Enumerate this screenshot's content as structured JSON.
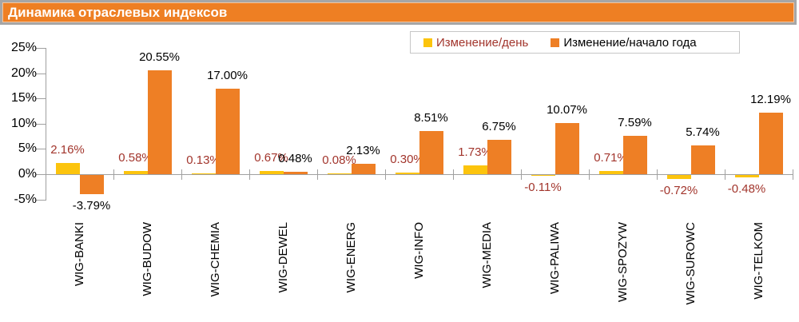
{
  "panel": {
    "title": "Динамика отраслевых индексов"
  },
  "colors": {
    "title_bar_bg": "#EE7F23",
    "title_text": "#FFFFFF",
    "axis": "#A0A0A0",
    "legend_border": "#C6C6C6",
    "day_bar": "#FCC40D",
    "ytd_bar": "#EE7F25",
    "day_label_text": "#A2352C",
    "ytd_label_text": "#000000"
  },
  "chart_data": {
    "type": "bar",
    "title": "Динамика отраслевых индексов",
    "categories": [
      "WIG-BANKI",
      "WIG-BUDOW",
      "WIG-CHEMIA",
      "WIG-DEWEL",
      "WIG-ENERG",
      "WIG-INFO",
      "WIG-MEDIA",
      "WIG-PALIWA",
      "WIG-SPOZYW",
      "WIG-SUROWC",
      "WIG-TELKOM"
    ],
    "series": [
      {
        "name": "Изменение/день",
        "color": "#FCC40D",
        "label_color": "#A2352C",
        "values": [
          2.16,
          0.58,
          0.13,
          0.67,
          0.08,
          0.3,
          1.73,
          -0.11,
          0.71,
          -0.72,
          -0.48
        ]
      },
      {
        "name": "Изменение/начало года",
        "color": "#EE7F25",
        "label_color": "#000000",
        "values": [
          -3.79,
          20.55,
          17.0,
          0.48,
          2.13,
          8.51,
          6.75,
          10.07,
          7.59,
          5.74,
          12.19
        ]
      }
    ],
    "ylim": [
      -5,
      25
    ],
    "ytick_step": 5,
    "ytick_labels": [
      "25%",
      "20%",
      "15%",
      "10%",
      "5%",
      "0%",
      "-5%"
    ],
    "value_label_format": "0.00%",
    "legend_position": "top-right",
    "grid": false
  }
}
